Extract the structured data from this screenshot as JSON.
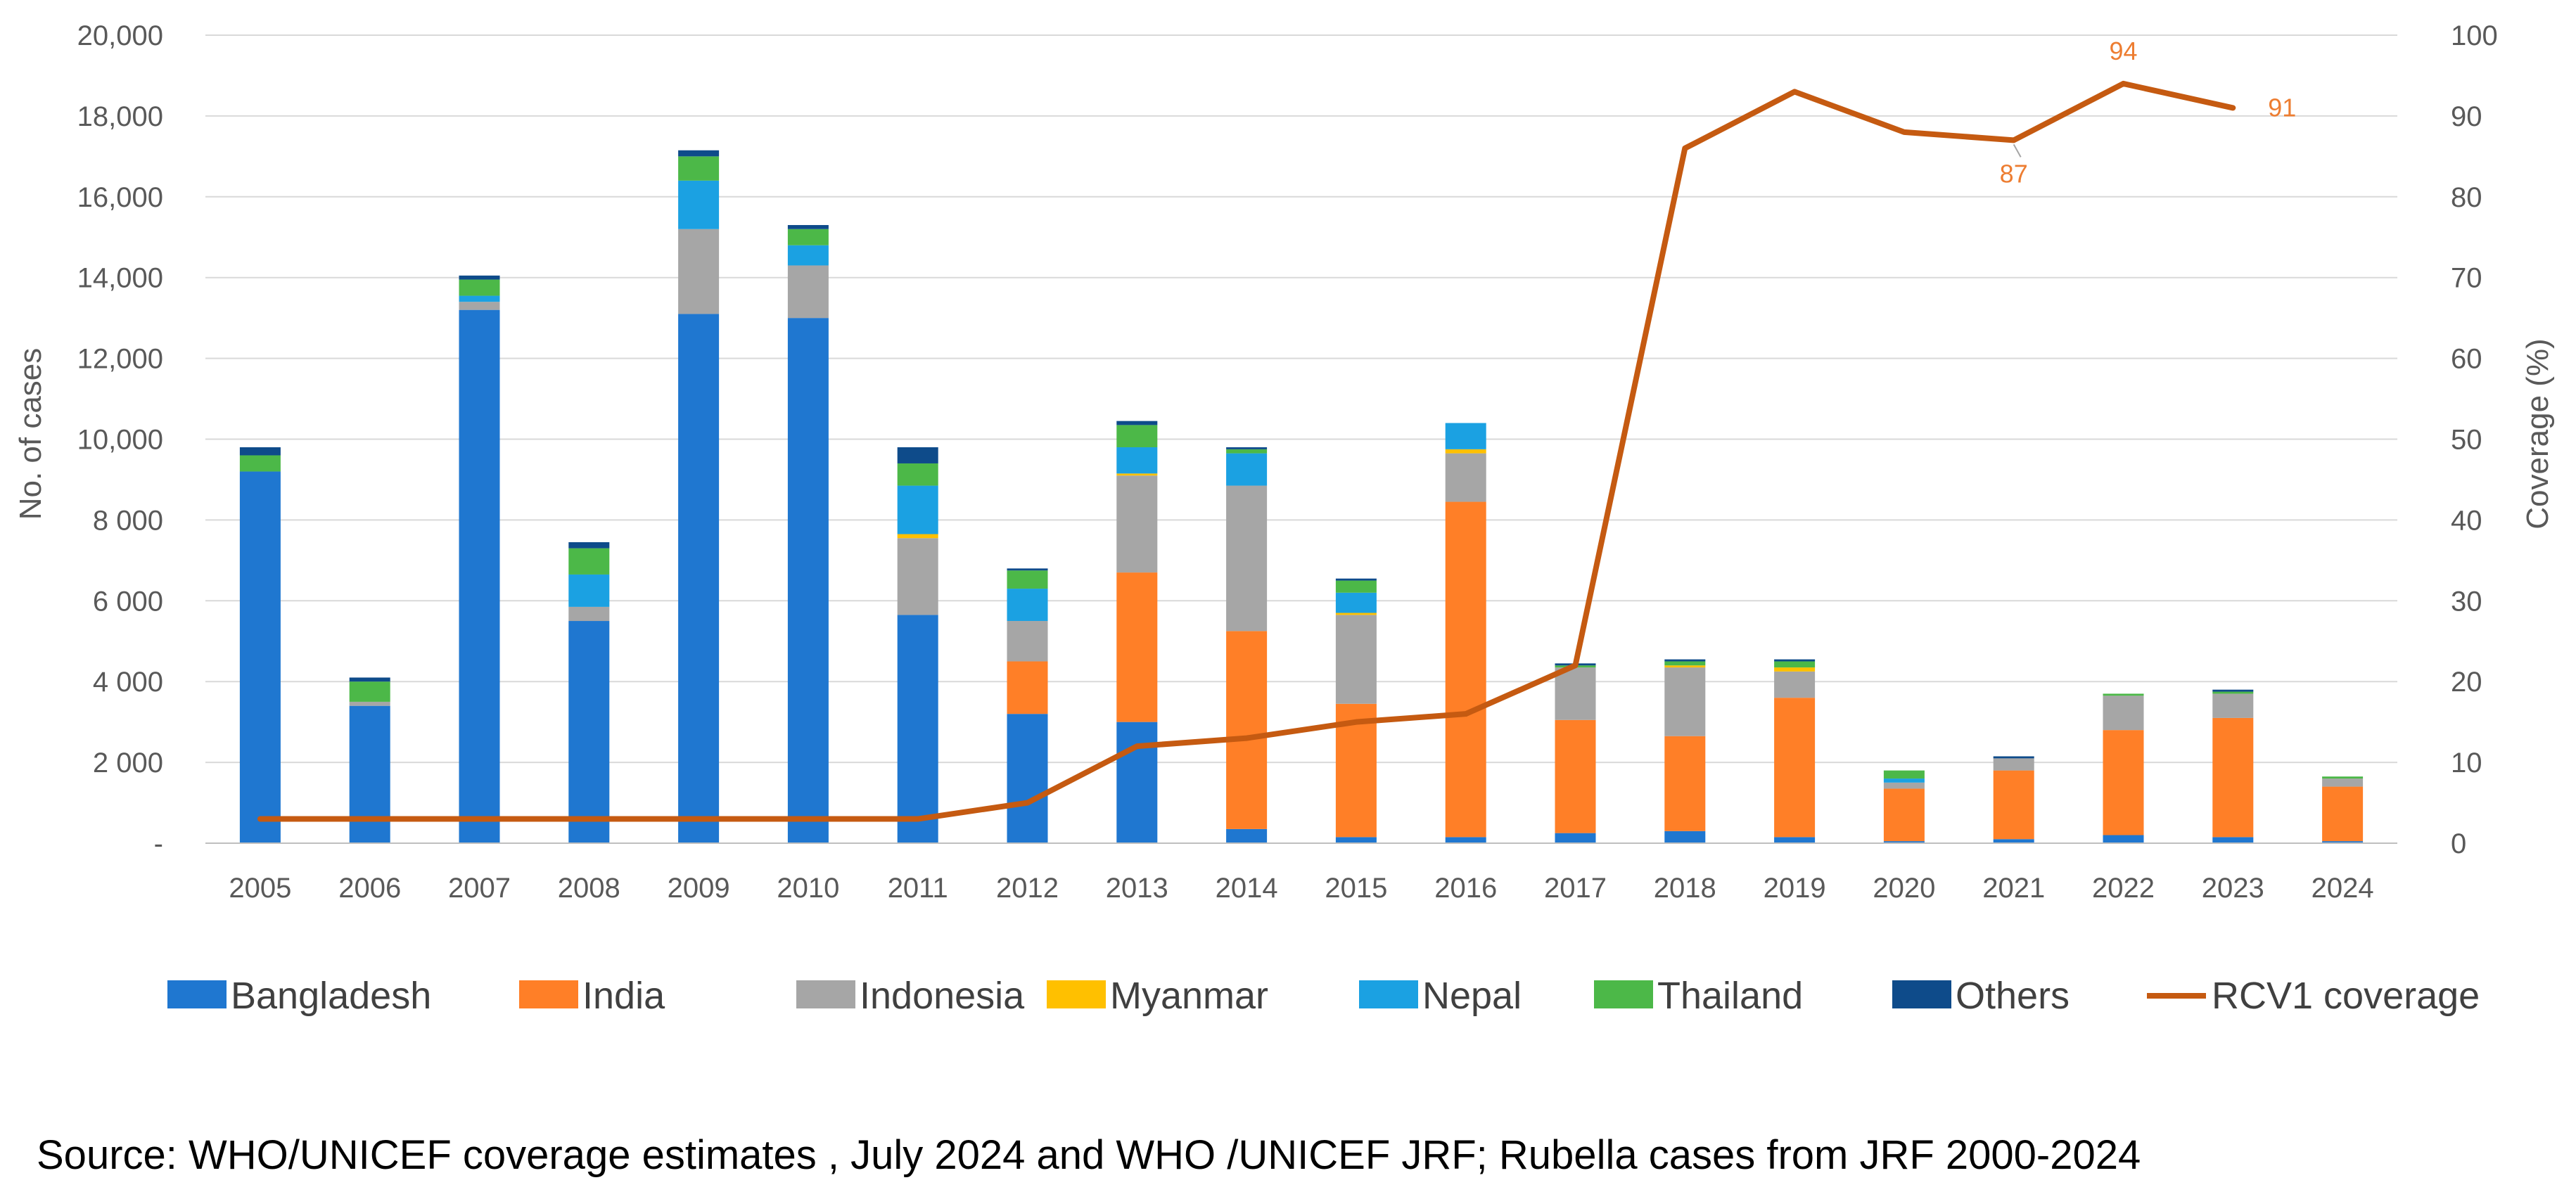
{
  "chart_data": {
    "type": "bar",
    "stacked": true,
    "categories": [
      "2005",
      "2006",
      "2007",
      "2008",
      "2009",
      "2010",
      "2011",
      "2012",
      "2013",
      "2014",
      "2015",
      "2016",
      "2017",
      "2018",
      "2019",
      "2020",
      "2021",
      "2022",
      "2023",
      "2024"
    ],
    "series": [
      {
        "name": "Bangladesh",
        "color": "#1F77D0",
        "values": [
          9200,
          3400,
          13200,
          5500,
          13100,
          13000,
          5650,
          3200,
          3000,
          350,
          150,
          150,
          250,
          300,
          150,
          50,
          100,
          200,
          150,
          50
        ]
      },
      {
        "name": "India",
        "color": "#FF7F27",
        "values": [
          0,
          0,
          0,
          0,
          0,
          0,
          0,
          1300,
          3700,
          4900,
          3300,
          8300,
          2800,
          2350,
          3450,
          1300,
          1700,
          2600,
          2950,
          1350
        ]
      },
      {
        "name": "Indonesia",
        "color": "#A6A6A6",
        "values": [
          0,
          100,
          200,
          350,
          2100,
          1300,
          1900,
          1000,
          2400,
          3600,
          2200,
          1200,
          1300,
          1700,
          650,
          150,
          300,
          850,
          600,
          200
        ]
      },
      {
        "name": "Myanmar",
        "color": "#FFC000",
        "values": [
          0,
          0,
          0,
          0,
          0,
          0,
          100,
          0,
          50,
          0,
          50,
          100,
          0,
          50,
          100,
          0,
          0,
          0,
          0,
          0
        ]
      },
      {
        "name": "Nepal",
        "color": "#1BA1E2",
        "values": [
          0,
          0,
          150,
          800,
          1200,
          500,
          1200,
          800,
          650,
          800,
          500,
          650,
          0,
          0,
          0,
          100,
          0,
          0,
          0,
          0
        ]
      },
      {
        "name": "Thailand",
        "color": "#4CB848",
        "values": [
          400,
          500,
          400,
          650,
          600,
          400,
          550,
          450,
          550,
          100,
          300,
          0,
          50,
          100,
          150,
          200,
          0,
          50,
          50,
          50
        ]
      },
      {
        "name": "Others",
        "color": "#0E4B8A",
        "values": [
          200,
          100,
          100,
          150,
          150,
          100,
          400,
          50,
          100,
          50,
          50,
          0,
          50,
          50,
          50,
          0,
          50,
          0,
          50,
          0
        ]
      }
    ],
    "line": {
      "name": "RCV1 coverage",
      "color": "#C55A11",
      "values": [
        3,
        3,
        3,
        3,
        3,
        3,
        3,
        5,
        12,
        13,
        15,
        16,
        22,
        86,
        93,
        88,
        87,
        94,
        91,
        null
      ],
      "data_labels": [
        {
          "year": "2021",
          "value": "87"
        },
        {
          "year": "2022",
          "value": "94"
        },
        {
          "year": "2023",
          "value": "91"
        }
      ]
    },
    "ylabel": "No. of cases",
    "y2label": "Coverage (%)",
    "ylim": [
      0,
      20000
    ],
    "y2lim": [
      0,
      100
    ],
    "y_ticks": [
      "-",
      "2 000",
      "4 000",
      "6 000",
      "8 000",
      "10,000",
      "12,000",
      "14,000",
      "16,000",
      "18,000",
      "20,000"
    ],
    "y2_ticks": [
      "0",
      "10",
      "20",
      "30",
      "40",
      "50",
      "60",
      "70",
      "80",
      "90",
      "100"
    ],
    "grid": true,
    "legend_position": "bottom",
    "legend": [
      "Bangladesh",
      "India",
      "Indonesia",
      "Myanmar",
      "Nepal",
      "Thailand",
      "Others",
      "RCV1 coverage"
    ]
  },
  "source_note": "Source: WHO/UNICEF coverage estimates , July 2024 and WHO /UNICEF JRF; Rubella cases from JRF 2000-2024"
}
